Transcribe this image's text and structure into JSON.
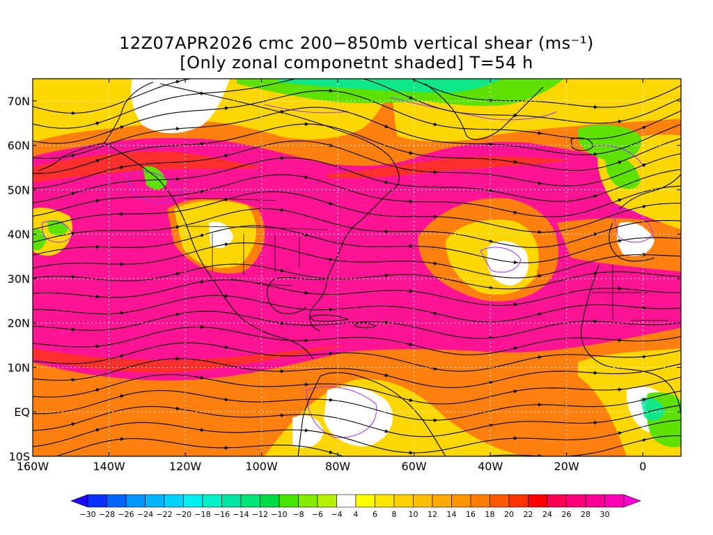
{
  "title_line1": "12Z07APR2026 cmc 200−850mb vertical shear (ms⁻¹)",
  "title_line2": "[Only zonal componetnt shaded] T=54 h",
  "map": {
    "lon_min": -160,
    "lon_max": 10,
    "lat_min": -10,
    "lat_max": 75,
    "x_ticks": [
      {
        "lon": -160,
        "label": "160W"
      },
      {
        "lon": -140,
        "label": "140W"
      },
      {
        "lon": -120,
        "label": "120W"
      },
      {
        "lon": -100,
        "label": "100W"
      },
      {
        "lon": -80,
        "label": "80W"
      },
      {
        "lon": -60,
        "label": "60W"
      },
      {
        "lon": -40,
        "label": "40W"
      },
      {
        "lon": -20,
        "label": "20W"
      },
      {
        "lon": 0,
        "label": "0"
      }
    ],
    "y_ticks": [
      {
        "lat": -10,
        "label": "10S"
      },
      {
        "lat": 0,
        "label": "EQ"
      },
      {
        "lat": 10,
        "label": "10N"
      },
      {
        "lat": 20,
        "label": "20N"
      },
      {
        "lat": 30,
        "label": "30N"
      },
      {
        "lat": 40,
        "label": "40N"
      },
      {
        "lat": 50,
        "label": "50N"
      },
      {
        "lat": 60,
        "label": "60N"
      },
      {
        "lat": 70,
        "label": "70N"
      }
    ],
    "grid_lons": [
      -140,
      -120,
      -100,
      -80,
      -60,
      -40,
      -20,
      0
    ],
    "grid_lats": [
      0,
      10,
      20,
      30,
      40,
      50,
      60,
      70
    ]
  },
  "colorbar": {
    "colors": [
      "#1e00ff",
      "#0a32ff",
      "#0064ff",
      "#0096ff",
      "#00b4ff",
      "#00d2ff",
      "#00f0f0",
      "#00f0c8",
      "#00e6a0",
      "#00e678",
      "#00dc46",
      "#46e600",
      "#82eb00",
      "#b4f000",
      "#ffffff",
      "#ffff00",
      "#ffe600",
      "#ffd200",
      "#ffbe00",
      "#ffaa00",
      "#ff9600",
      "#ff7d00",
      "#ff5a00",
      "#ff3200",
      "#ff0000",
      "#ff0050",
      "#ff0078",
      "#ff0096",
      "#ff00b4",
      "#ff00d2"
    ],
    "labels": [
      "−30",
      "−28",
      "−26",
      "−24",
      "−22",
      "−20",
      "−18",
      "−16",
      "−14",
      "−12",
      "−10",
      "−8",
      "−6",
      "−4",
      "4",
      "6",
      "8",
      "10",
      "12",
      "14",
      "16",
      "18",
      "20",
      "22",
      "24",
      "26",
      "28",
      "30"
    ]
  }
}
